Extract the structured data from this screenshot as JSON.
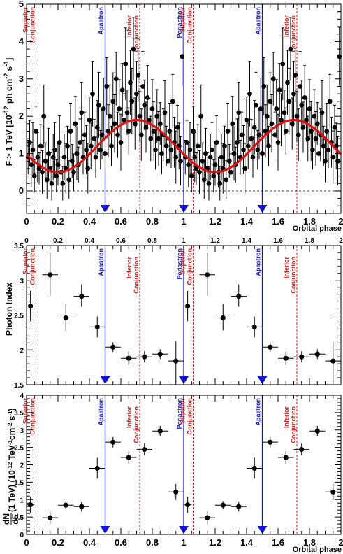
{
  "chart_data": [
    {
      "type": "scatter",
      "panel": "top",
      "ylabel": "F > 1 TeV [10^{-12} ph cm^{-2} s^{-1}]",
      "xlabel": "Orbital phase",
      "xlim": [
        0,
        2
      ],
      "ylim": [
        -0.6,
        5
      ],
      "xticks": [
        "0",
        "0.2",
        "0.4",
        "0.6",
        "0.8",
        "1",
        "1.2",
        "1.4",
        "1.6",
        "1.8",
        "2"
      ],
      "yticks": [
        "0",
        "1",
        "2",
        "3",
        "4",
        "5"
      ],
      "fit_curve": {
        "mean": 1.2,
        "amplitude": 0.7,
        "phase_of_max": 0.7,
        "period": 1
      },
      "points_phase_0_to_1": [
        [
          0.01,
          0.9
        ],
        [
          0.02,
          1.3
        ],
        [
          0.03,
          0.7
        ],
        [
          0.04,
          1.1
        ],
        [
          0.05,
          0.4
        ],
        [
          0.06,
          1.6
        ],
        [
          0.07,
          0.9
        ],
        [
          0.08,
          0.6
        ],
        [
          0.09,
          1.2
        ],
        [
          0.1,
          0.5
        ],
        [
          0.11,
          2.0
        ],
        [
          0.12,
          0.8
        ],
        [
          0.13,
          0.3
        ],
        [
          0.14,
          1.0
        ],
        [
          0.15,
          0.6
        ],
        [
          0.16,
          0.2
        ],
        [
          0.17,
          0.9
        ],
        [
          0.18,
          1.1
        ],
        [
          0.19,
          0.4
        ],
        [
          0.2,
          0.7
        ],
        [
          0.21,
          1.3
        ],
        [
          0.22,
          0.5
        ],
        [
          0.23,
          0.2
        ],
        [
          0.24,
          0.9
        ],
        [
          0.25,
          0.6
        ],
        [
          0.26,
          1.2
        ],
        [
          0.27,
          0.3
        ],
        [
          0.28,
          1.6
        ],
        [
          0.29,
          0.8
        ],
        [
          0.3,
          0.5
        ],
        [
          0.31,
          1.8
        ],
        [
          0.32,
          1.0
        ],
        [
          0.33,
          0.7
        ],
        [
          0.34,
          1.3
        ],
        [
          0.35,
          2.1
        ],
        [
          0.36,
          0.9
        ],
        [
          0.37,
          1.5
        ],
        [
          0.38,
          1.1
        ],
        [
          0.39,
          0.6
        ],
        [
          0.4,
          1.9
        ],
        [
          0.41,
          1.2
        ],
        [
          0.42,
          2.6
        ],
        [
          0.43,
          1.4
        ],
        [
          0.44,
          0.9
        ],
        [
          0.45,
          1.7
        ],
        [
          0.46,
          2.3
        ],
        [
          0.47,
          1.1
        ],
        [
          0.48,
          1.5
        ],
        [
          0.49,
          2.2
        ],
        [
          0.5,
          1.0
        ],
        [
          0.51,
          2.8
        ],
        [
          0.52,
          1.6
        ],
        [
          0.53,
          2.0
        ],
        [
          0.54,
          1.2
        ],
        [
          0.55,
          2.4
        ],
        [
          0.56,
          1.8
        ],
        [
          0.57,
          3.0
        ],
        [
          0.58,
          1.5
        ],
        [
          0.59,
          2.2
        ],
        [
          0.6,
          1.3
        ],
        [
          0.61,
          2.7
        ],
        [
          0.62,
          1.9
        ],
        [
          0.63,
          3.4
        ],
        [
          0.64,
          2.1
        ],
        [
          0.65,
          1.6
        ],
        [
          0.66,
          2.9
        ],
        [
          0.67,
          2.4
        ],
        [
          0.68,
          3.8
        ],
        [
          0.69,
          1.8
        ],
        [
          0.7,
          2.6
        ],
        [
          0.71,
          3.1
        ],
        [
          0.72,
          2.0
        ],
        [
          0.73,
          1.5
        ],
        [
          0.74,
          2.8
        ],
        [
          0.75,
          2.3
        ],
        [
          0.76,
          1.7
        ],
        [
          0.77,
          2.5
        ],
        [
          0.78,
          1.9
        ],
        [
          0.79,
          1.4
        ],
        [
          0.8,
          2.2
        ],
        [
          0.81,
          1.6
        ],
        [
          0.82,
          1.1
        ],
        [
          0.83,
          2.0
        ],
        [
          0.84,
          1.4
        ],
        [
          0.85,
          1.8
        ],
        [
          0.86,
          1.0
        ],
        [
          0.87,
          1.5
        ],
        [
          0.88,
          2.1
        ],
        [
          0.89,
          1.2
        ],
        [
          0.9,
          0.8
        ],
        [
          0.91,
          1.6
        ],
        [
          0.92,
          1.1
        ],
        [
          0.93,
          2.4
        ],
        [
          0.94,
          1.3
        ],
        [
          0.95,
          0.9
        ],
        [
          0.96,
          1.7
        ],
        [
          0.97,
          1.2
        ],
        [
          0.98,
          0.8
        ],
        [
          0.99,
          3.6
        ]
      ]
    },
    {
      "type": "scatter",
      "panel": "middle",
      "ylabel": "Photon Index",
      "xlim": [
        0,
        2
      ],
      "ylim": [
        1.5,
        3.5
      ],
      "xticks": [
        "0",
        "0.2",
        "0.4",
        "0.6",
        "0.8",
        "1",
        "1.2",
        "1.4",
        "1.6",
        "1.8",
        "2"
      ],
      "yticks": [
        "1.5",
        "2",
        "2.5",
        "3",
        "3.5"
      ],
      "x": [
        0.025,
        0.15,
        0.25,
        0.35,
        0.45,
        0.55,
        0.65,
        0.75,
        0.85,
        0.95,
        1.025,
        1.15,
        1.25,
        1.35,
        1.45,
        1.55,
        1.65,
        1.75,
        1.85,
        1.95
      ],
      "xerr": [
        0.025,
        0.05,
        0.05,
        0.05,
        0.05,
        0.05,
        0.05,
        0.05,
        0.05,
        0.05,
        0.025,
        0.05,
        0.05,
        0.05,
        0.05,
        0.05,
        0.05,
        0.05,
        0.05,
        0.05
      ],
      "y": [
        2.63,
        3.08,
        2.46,
        2.77,
        2.33,
        2.04,
        1.88,
        1.9,
        1.94,
        1.84,
        2.63,
        3.08,
        2.46,
        2.77,
        2.33,
        2.04,
        1.88,
        1.9,
        1.94,
        1.84
      ],
      "yerr_low": [
        0.22,
        0.3,
        0.18,
        0.15,
        0.15,
        0.07,
        0.1,
        0.08,
        0.07,
        0.3,
        0.22,
        0.3,
        0.18,
        0.15,
        0.15,
        0.07,
        0.1,
        0.08,
        0.07,
        0.3
      ],
      "yerr_high": [
        0.22,
        0.32,
        0.2,
        0.17,
        0.15,
        0.07,
        0.1,
        0.08,
        0.07,
        0.28,
        0.22,
        0.32,
        0.2,
        0.17,
        0.15,
        0.07,
        0.1,
        0.08,
        0.07,
        0.28
      ]
    },
    {
      "type": "scatter",
      "panel": "bottom",
      "ylabel": "dN/dE(1 TeV) (10^{-12} TeV^{-1}cm^{-2} s^{-1})",
      "xlabel": "Orbital phase",
      "xlim": [
        0,
        2
      ],
      "ylim": [
        0,
        4
      ],
      "xticks": [
        "0",
        "0.2",
        "0.4",
        "0.6",
        "0.8",
        "1",
        "1.2",
        "1.4",
        "1.6",
        "1.8",
        "2"
      ],
      "yticks": [
        "0",
        "0.5",
        "1",
        "1.5",
        "2",
        "2.5",
        "3",
        "3.5",
        "4"
      ],
      "x": [
        0.025,
        0.15,
        0.25,
        0.35,
        0.45,
        0.55,
        0.65,
        0.75,
        0.85,
        0.95,
        1.025,
        1.15,
        1.25,
        1.35,
        1.45,
        1.55,
        1.65,
        1.75,
        1.85,
        1.95
      ],
      "xerr": [
        0.025,
        0.05,
        0.05,
        0.05,
        0.05,
        0.05,
        0.05,
        0.05,
        0.05,
        0.05,
        0.025,
        0.05,
        0.05,
        0.05,
        0.05,
        0.05,
        0.05,
        0.05,
        0.05,
        0.05
      ],
      "y": [
        0.85,
        0.48,
        0.84,
        0.8,
        1.9,
        2.65,
        2.21,
        2.44,
        2.97,
        1.22,
        0.85,
        0.48,
        0.84,
        0.8,
        1.9,
        2.65,
        2.21,
        2.44,
        2.97,
        1.22
      ],
      "yerr_low": [
        0.23,
        0.18,
        0.12,
        0.14,
        0.3,
        0.15,
        0.18,
        0.17,
        0.15,
        0.23,
        0.23,
        0.18,
        0.12,
        0.14,
        0.3,
        0.15,
        0.18,
        0.17,
        0.15,
        0.23
      ],
      "yerr_high": [
        0.23,
        0.18,
        0.12,
        0.14,
        0.3,
        0.15,
        0.18,
        0.17,
        0.15,
        0.23,
        0.23,
        0.18,
        0.12,
        0.14,
        0.3,
        0.15,
        0.18,
        0.17,
        0.15,
        0.23
      ]
    }
  ],
  "markers": {
    "apastron": {
      "label": "Apastron",
      "phases": [
        0.5,
        1.5
      ],
      "color": "#1414d8"
    },
    "periastron": {
      "label": "Periastron",
      "phases": [
        1.0
      ],
      "color": "#1414d8"
    },
    "superior_conjunction": {
      "label_line1": "Superior",
      "label_line2": "Conjunction",
      "phases": [
        0.06,
        1.06
      ],
      "color": "#d81e1e"
    },
    "inferior_conjunction": {
      "label_line1": "Inferior",
      "label_line2": "Conjunction",
      "phases": [
        0.72,
        1.72
      ],
      "color": "#d81e1e"
    }
  },
  "labels": {
    "orbital_phase": "Orbital phase",
    "top_ylabel_main": "F > 1 TeV [10",
    "top_ylabel_exp1": "-12",
    "top_ylabel_mid": " ph cm",
    "top_ylabel_exp2": "-2",
    "top_ylabel_mid2": " s",
    "top_ylabel_exp3": "-1",
    "top_ylabel_end": "]",
    "mid_ylabel": "Photon Index",
    "bot_ylabel_dN": "dN",
    "bot_ylabel_dE": "dE",
    "bot_ylabel_main": "(1 TeV) (10",
    "bot_ylabel_exp1": "-12",
    "bot_ylabel_mid": " TeV",
    "bot_ylabel_exp2": "-1",
    "bot_ylabel_mid2": "cm",
    "bot_ylabel_exp3": "-2",
    "bot_ylabel_mid3": " s",
    "bot_ylabel_exp4": "-1",
    "bot_ylabel_end": ")"
  }
}
